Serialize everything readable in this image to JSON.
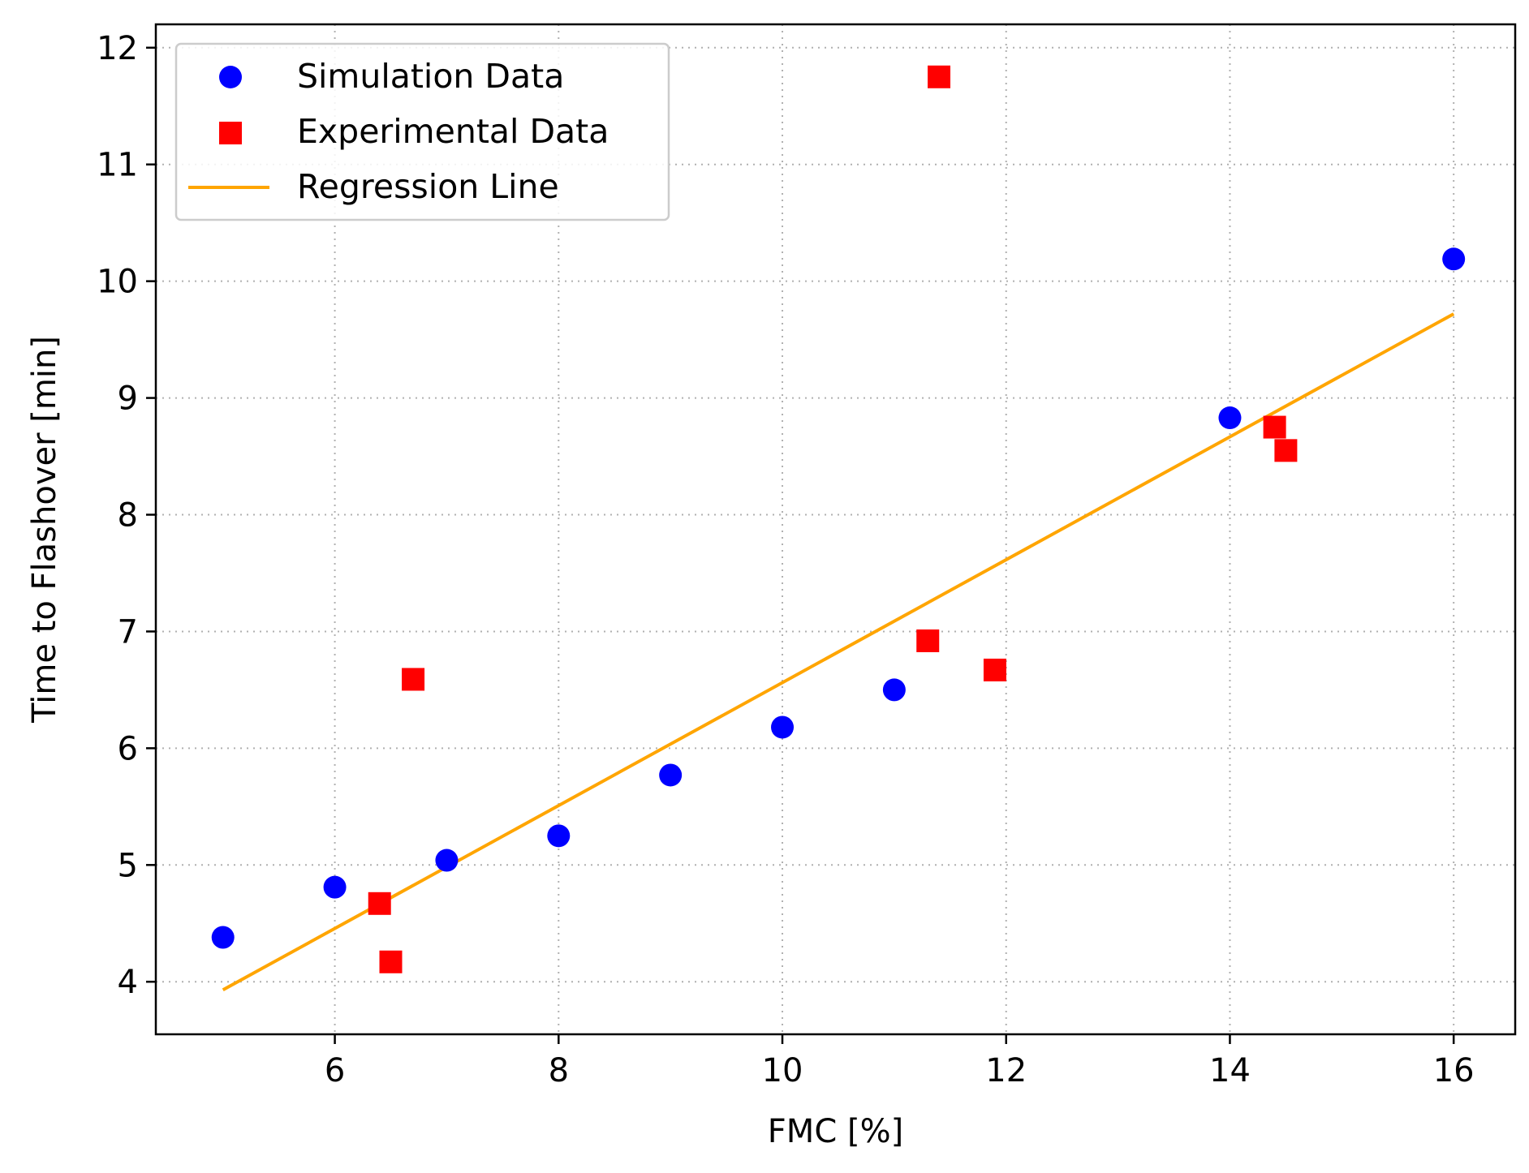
{
  "chart_data": {
    "type": "scatter",
    "title": "",
    "xlabel": "FMC [%]",
    "ylabel": "Time to Flashover [min]",
    "xlim": [
      4.4,
      16.55
    ],
    "ylim": [
      3.55,
      12.2
    ],
    "xticks": [
      6,
      8,
      10,
      12,
      14,
      16
    ],
    "yticks": [
      4,
      5,
      6,
      7,
      8,
      9,
      10,
      11,
      12
    ],
    "grid": true,
    "legend_position": "upper-left",
    "colors": {
      "simulation": "#0000ff",
      "experimental": "#ff0000",
      "regression": "#ffa500"
    },
    "series": [
      {
        "name": "Simulation Data",
        "marker": "circle",
        "x": [
          5,
          6,
          7,
          8,
          9,
          10,
          11,
          14,
          16
        ],
        "y": [
          4.38,
          4.81,
          5.04,
          5.25,
          5.77,
          6.18,
          6.5,
          8.83,
          10.19
        ]
      },
      {
        "name": "Experimental Data",
        "marker": "square",
        "x": [
          6.4,
          6.5,
          6.7,
          11.3,
          11.4,
          11.9,
          14.4,
          14.5
        ],
        "y": [
          4.67,
          4.17,
          6.59,
          6.92,
          11.75,
          6.67,
          8.75,
          8.55
        ]
      },
      {
        "name": "Regression Line",
        "marker": "line",
        "x": [
          5,
          16
        ],
        "y": [
          3.93,
          9.72
        ]
      }
    ]
  }
}
